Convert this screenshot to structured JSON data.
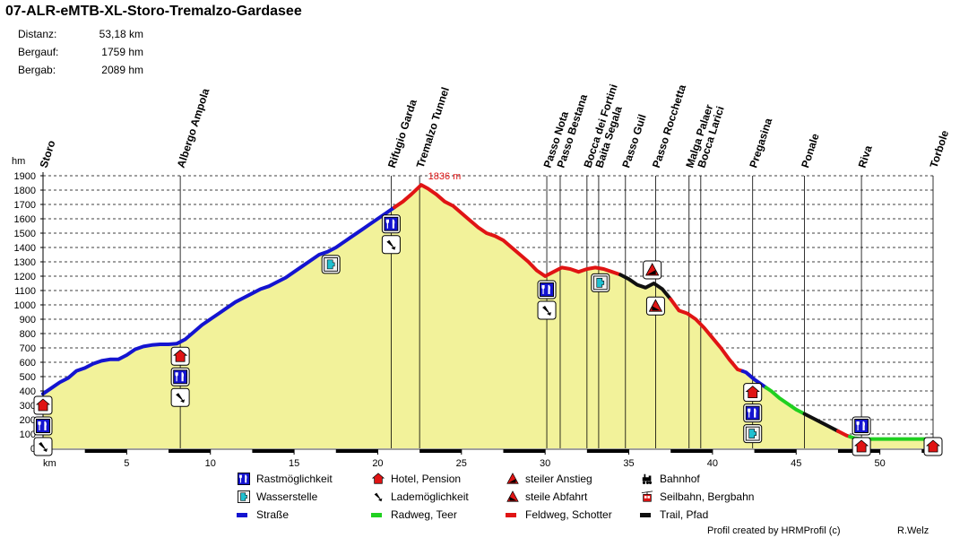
{
  "title": "07-ALR-eMTB-XL-Storo-Tremalzo-Gardasee",
  "stats": [
    {
      "label": "Distanz:",
      "value": "53,18 km"
    },
    {
      "label": "Bergauf:",
      "value": "1759 hm"
    },
    {
      "label": "Bergab:",
      "value": "2089 hm"
    }
  ],
  "chart_data": {
    "type": "area",
    "xlabel": "km",
    "ylabel": "hm",
    "xlim": [
      0,
      53.18
    ],
    "ylim": [
      0,
      1900
    ],
    "x_ticks": [
      5,
      10,
      15,
      20,
      25,
      30,
      35,
      40,
      45,
      50
    ],
    "y_ticks": [
      0,
      100,
      200,
      300,
      400,
      500,
      600,
      700,
      800,
      900,
      1000,
      1100,
      1200,
      1300,
      1400,
      1500,
      1600,
      1700,
      1800,
      1900
    ],
    "grid": "horizontal dashed",
    "fill_color": "#f2f29a",
    "max_annotation": {
      "x": 22.6,
      "y": 1836,
      "label": "1836 m"
    },
    "profile": [
      [
        0,
        380
      ],
      [
        0.5,
        420
      ],
      [
        1,
        460
      ],
      [
        1.5,
        490
      ],
      [
        2,
        540
      ],
      [
        2.5,
        560
      ],
      [
        3,
        590
      ],
      [
        3.5,
        610
      ],
      [
        4,
        620
      ],
      [
        4.5,
        620
      ],
      [
        5,
        650
      ],
      [
        5.5,
        690
      ],
      [
        6,
        710
      ],
      [
        6.5,
        720
      ],
      [
        7,
        725
      ],
      [
        7.5,
        725
      ],
      [
        8,
        730
      ],
      [
        8.5,
        760
      ],
      [
        9,
        810
      ],
      [
        9.5,
        860
      ],
      [
        10,
        900
      ],
      [
        10.5,
        940
      ],
      [
        11,
        980
      ],
      [
        11.5,
        1020
      ],
      [
        12,
        1050
      ],
      [
        12.5,
        1080
      ],
      [
        13,
        1110
      ],
      [
        13.5,
        1130
      ],
      [
        14,
        1160
      ],
      [
        14.5,
        1190
      ],
      [
        15,
        1230
      ],
      [
        15.5,
        1270
      ],
      [
        16,
        1310
      ],
      [
        16.5,
        1350
      ],
      [
        17,
        1370
      ],
      [
        17.5,
        1400
      ],
      [
        18,
        1440
      ],
      [
        18.5,
        1480
      ],
      [
        19,
        1520
      ],
      [
        19.5,
        1560
      ],
      [
        20,
        1600
      ],
      [
        20.5,
        1640
      ],
      [
        21,
        1680
      ],
      [
        21.5,
        1720
      ],
      [
        22,
        1770
      ],
      [
        22.6,
        1836
      ],
      [
        23,
        1810
      ],
      [
        23.5,
        1770
      ],
      [
        24,
        1720
      ],
      [
        24.5,
        1690
      ],
      [
        25,
        1640
      ],
      [
        25.5,
        1590
      ],
      [
        26,
        1540
      ],
      [
        26.5,
        1500
      ],
      [
        27,
        1480
      ],
      [
        27.5,
        1450
      ],
      [
        28,
        1400
      ],
      [
        28.5,
        1350
      ],
      [
        29,
        1300
      ],
      [
        29.5,
        1240
      ],
      [
        30,
        1200
      ],
      [
        30.5,
        1230
      ],
      [
        31,
        1260
      ],
      [
        31.5,
        1250
      ],
      [
        32,
        1230
      ],
      [
        32.5,
        1250
      ],
      [
        33,
        1260
      ],
      [
        33.5,
        1250
      ],
      [
        34,
        1230
      ],
      [
        34.5,
        1210
      ],
      [
        35,
        1180
      ],
      [
        35.5,
        1140
      ],
      [
        36,
        1120
      ],
      [
        36.5,
        1150
      ],
      [
        37,
        1110
      ],
      [
        37.5,
        1040
      ],
      [
        38,
        960
      ],
      [
        38.5,
        940
      ],
      [
        39,
        900
      ],
      [
        39.5,
        840
      ],
      [
        40,
        770
      ],
      [
        40.5,
        700
      ],
      [
        41,
        620
      ],
      [
        41.5,
        550
      ],
      [
        42,
        530
      ],
      [
        42.5,
        480
      ],
      [
        43,
        440
      ],
      [
        43.5,
        400
      ],
      [
        44,
        350
      ],
      [
        44.5,
        310
      ],
      [
        45,
        270
      ],
      [
        45.5,
        240
      ],
      [
        46,
        210
      ],
      [
        46.5,
        180
      ],
      [
        47,
        150
      ],
      [
        47.5,
        120
      ],
      [
        48,
        90
      ],
      [
        48.5,
        70
      ],
      [
        49,
        65
      ],
      [
        50,
        65
      ],
      [
        51,
        65
      ],
      [
        52,
        65
      ],
      [
        53.18,
        65
      ]
    ],
    "surface_segments": [
      {
        "from": 0,
        "to": 21,
        "surface": "road"
      },
      {
        "from": 21,
        "to": 34.5,
        "surface": "gravel"
      },
      {
        "from": 34.5,
        "to": 37.5,
        "surface": "trail"
      },
      {
        "from": 37.5,
        "to": 41.8,
        "surface": "gravel"
      },
      {
        "from": 41.8,
        "to": 43.2,
        "surface": "road"
      },
      {
        "from": 43.2,
        "to": 45.5,
        "surface": "cycleway"
      },
      {
        "from": 45.5,
        "to": 47.5,
        "surface": "trail"
      },
      {
        "from": 47.5,
        "to": 48.2,
        "surface": "gravel"
      },
      {
        "from": 48.2,
        "to": 53.18,
        "surface": "cycleway"
      }
    ],
    "surface_colors": {
      "road": "#1414d0",
      "cycleway": "#20d020",
      "gravel": "#e01414",
      "trail": "#101010"
    },
    "waypoints": [
      {
        "km": 0,
        "label": "Storo",
        "icons": [
          "hotel",
          "rest",
          "charging"
        ]
      },
      {
        "km": 8.2,
        "label": "Albergo Ampola",
        "icons": [
          "hotel",
          "rest",
          "charging"
        ]
      },
      {
        "km": 20.8,
        "label": "Rifugio Garda",
        "icons": [
          "rest",
          "charging"
        ]
      },
      {
        "km": 22.5,
        "label": "Tremalzo Tunnel",
        "icons": []
      },
      {
        "km": 30.1,
        "label": "Passo Nota",
        "icons": [
          "rest",
          "charging"
        ]
      },
      {
        "km": 30.9,
        "label": "Passo Bestana",
        "icons": []
      },
      {
        "km": 32.5,
        "label": "Bocca dei Fortini",
        "icons": []
      },
      {
        "km": 33.2,
        "label": "Baita Segala",
        "icons": []
      },
      {
        "km": 34.8,
        "label": "Passo Guil",
        "icons": []
      },
      {
        "km": 36.6,
        "label": "Passo Rocchetta",
        "icons": []
      },
      {
        "km": 38.6,
        "label": "Malga Palaer",
        "icons": []
      },
      {
        "km": 39.3,
        "label": "Bocca Larici",
        "icons": []
      },
      {
        "km": 42.4,
        "label": "Pregasina",
        "icons": [
          "hotel",
          "rest",
          "water"
        ]
      },
      {
        "km": 45.5,
        "label": "Ponale",
        "icons": []
      },
      {
        "km": 48.9,
        "label": "Riva",
        "icons": [
          "rest",
          "hotel"
        ]
      },
      {
        "km": 53.18,
        "label": "Torbole",
        "icons": [
          "hotel"
        ]
      }
    ],
    "extra_icons": [
      {
        "km": 17.2,
        "icon": "water"
      },
      {
        "km": 33.3,
        "icon": "water"
      },
      {
        "km": 36.4,
        "icon": "steep-up"
      },
      {
        "km": 36.6,
        "icon": "steep-down"
      }
    ]
  },
  "legend": [
    {
      "icon": "rest",
      "label": "Rastmöglichkeit"
    },
    {
      "icon": "water",
      "label": "Wasserstelle"
    },
    {
      "icon": "road",
      "label": "Straße"
    },
    {
      "icon": "hotel",
      "label": "Hotel, Pension"
    },
    {
      "icon": "charging",
      "label": "Lademöglichkeit"
    },
    {
      "icon": "cycleway",
      "label": "Radweg, Teer"
    },
    {
      "icon": "steep-up",
      "label": "steiler Anstieg"
    },
    {
      "icon": "steep-down",
      "label": "steile Abfahrt"
    },
    {
      "icon": "gravel",
      "label": "Feldweg, Schotter"
    },
    {
      "icon": "train",
      "label": "Bahnhof"
    },
    {
      "icon": "cablecar",
      "label": "Seilbahn, Bergbahn"
    },
    {
      "icon": "trail",
      "label": "Trail, Pfad"
    }
  ],
  "credit": "Profil created by HRMProfil (c)",
  "author": "R.Welz"
}
